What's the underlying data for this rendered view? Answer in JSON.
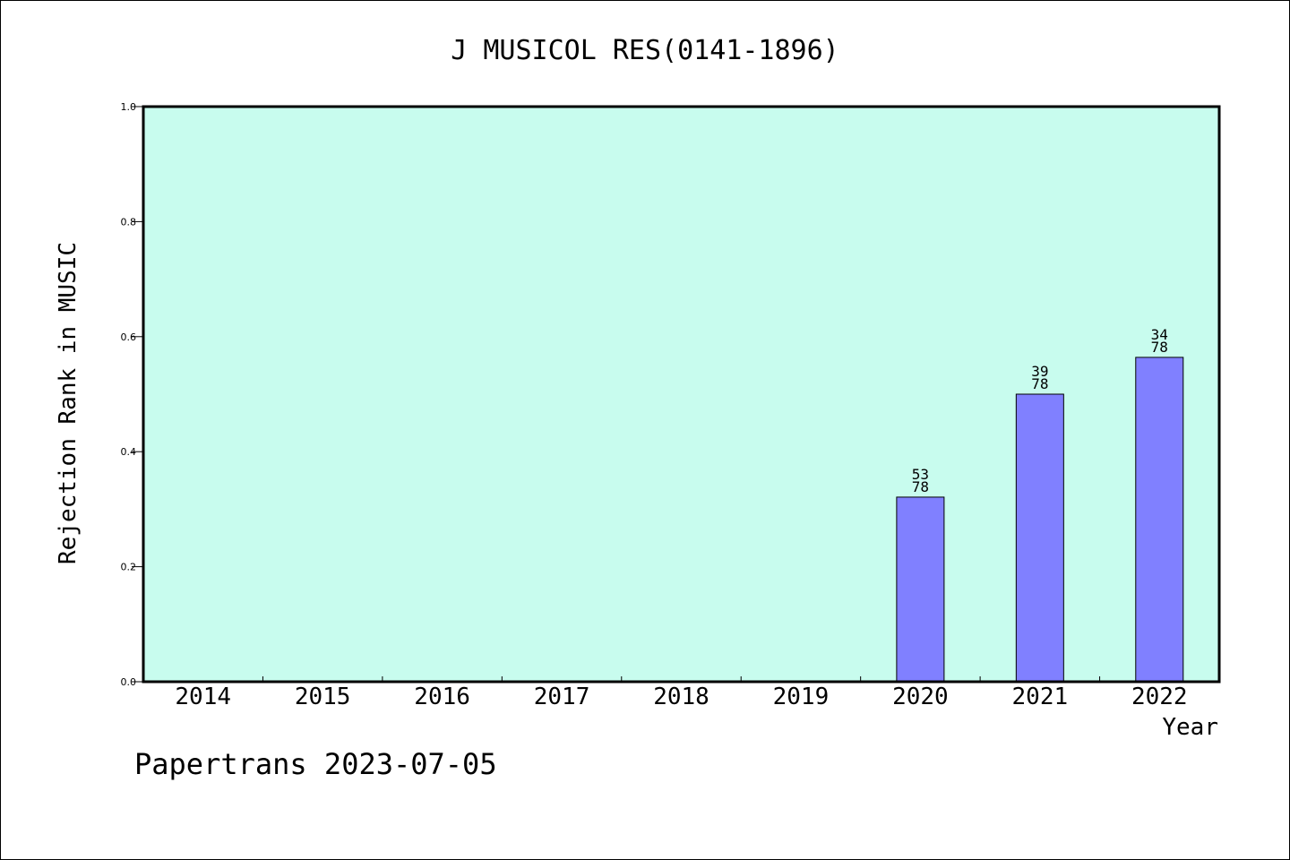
{
  "chart_data": {
    "type": "bar",
    "title": "J MUSICOL RES(0141-1896)",
    "xlabel": "Year",
    "ylabel": "Rejection Rank in MUSIC",
    "categories": [
      "2014",
      "2015",
      "2016",
      "2017",
      "2018",
      "2019",
      "2020",
      "2021",
      "2022"
    ],
    "values": [
      null,
      null,
      null,
      null,
      null,
      null,
      0.321,
      0.5,
      0.564
    ],
    "bar_labels": [
      {
        "top": "",
        "bottom": ""
      },
      {
        "top": "",
        "bottom": ""
      },
      {
        "top": "",
        "bottom": ""
      },
      {
        "top": "",
        "bottom": ""
      },
      {
        "top": "",
        "bottom": ""
      },
      {
        "top": "",
        "bottom": ""
      },
      {
        "top": "53",
        "bottom": "78"
      },
      {
        "top": "39",
        "bottom": "78"
      },
      {
        "top": "34",
        "bottom": "78"
      }
    ],
    "ylim": [
      0,
      1.0
    ],
    "yticks": [
      "0.0",
      "0.2",
      "0.4",
      "0.6",
      "0.8",
      "1.0"
    ],
    "grid": false,
    "plot_background": "#c8fcee",
    "bar_color": "#8080ff"
  },
  "footer": {
    "credit": "Papertrans 2023-07-05"
  }
}
